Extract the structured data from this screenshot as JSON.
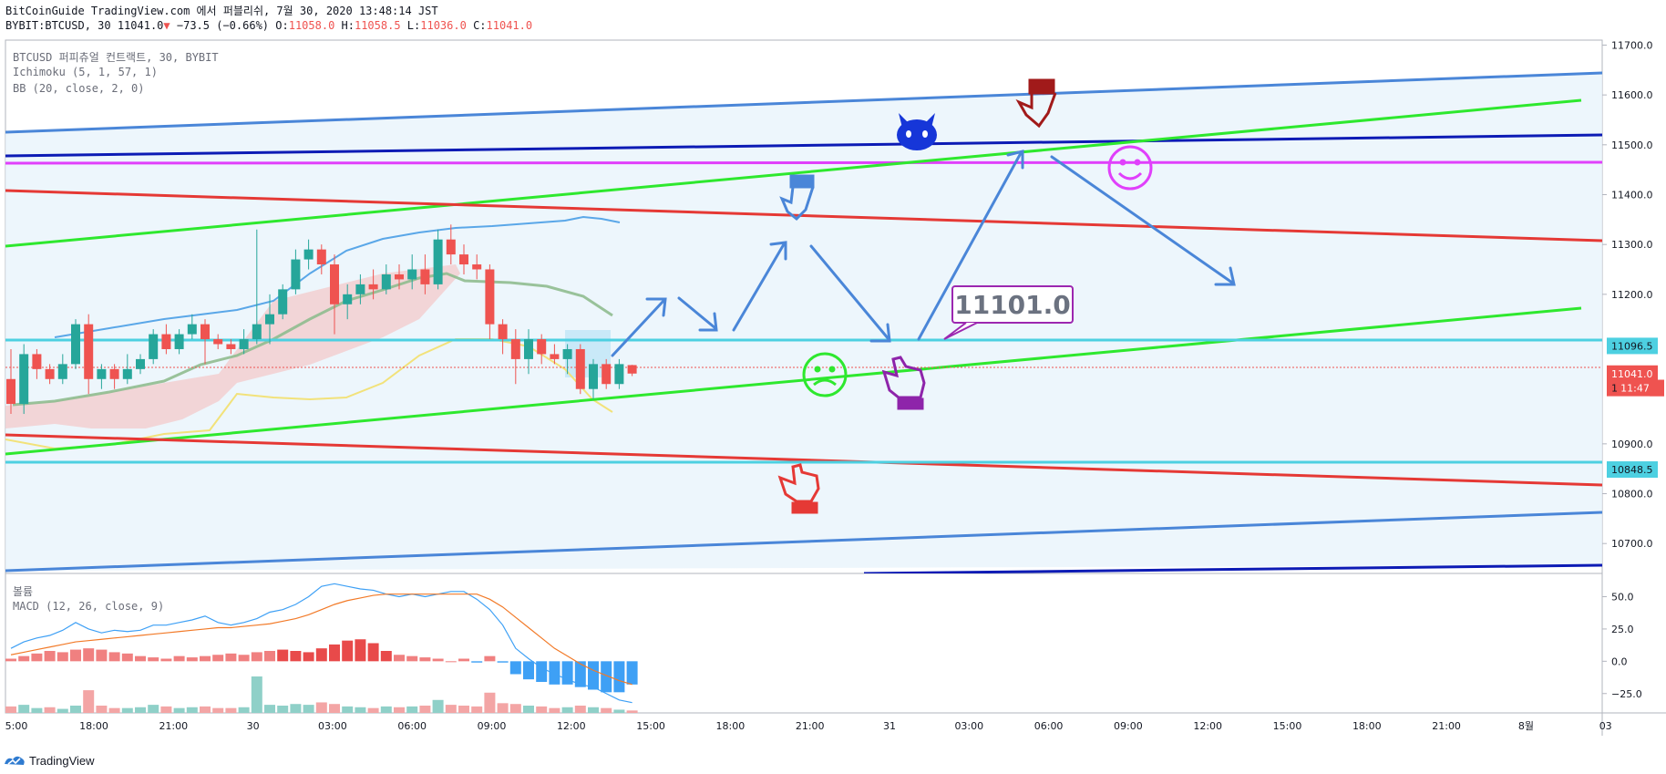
{
  "header": {
    "publisher": "BitCoinGuide TradingView.com 에서 퍼블리쉬, 7월 30, 2020 13:48:14 JST",
    "symbol": "BYBIT:BTCUSD, 30",
    "last": "11041.0",
    "change": "−73.5 (−0.66%)",
    "o_label": "O:",
    "o": "11058.0",
    "h_label": "H:",
    "h": "11058.5",
    "l_label": "L:",
    "l": "11036.0",
    "c_label": "C:",
    "c": "11041.0",
    "down_color": "#ef5350"
  },
  "legend": {
    "line1": "BTCUSD 퍼피츄얼 컨트랙트, 30, BYBIT",
    "line2": "Ichimoku (5, 1, 57, 1)",
    "line3": "BB (20, close, 2, 0)",
    "lower1": "볼륨",
    "lower2": "MACD (12, 26, close, 9)"
  },
  "annotation_price": "11101.0",
  "footer": {
    "brand": "TradingView"
  },
  "colors": {
    "up": "#26a69a",
    "down": "#ef5350",
    "cyan": "#4dd0e1",
    "green": "#2ee82e",
    "red": "#e53935",
    "blue": "#4a86d8",
    "navy": "#0d1bb5",
    "magenta": "#e040fb"
  },
  "chart_data": {
    "type": "candlestick",
    "price_axis": {
      "ylim": [
        10640,
        11710
      ],
      "ticks": [
        10700,
        10800,
        10900,
        11200,
        11300,
        11400,
        11500,
        11600,
        11700
      ],
      "tick_labels": [
        "10700.0",
        "10800.0",
        "10900.0",
        "11200.0",
        "11300.0",
        "11400.0",
        "11500.0",
        "11600.0",
        "11700.0"
      ]
    },
    "price_tags": [
      {
        "label": "11096.5",
        "value": 11096.5,
        "style": "cyan"
      },
      {
        "label": "11041.0",
        "value": 11041.0,
        "style": "red"
      },
      {
        "label": "11:47",
        "value": 11012,
        "style": "red"
      },
      {
        "label": "10848.5",
        "value": 10848.5,
        "style": "cyan"
      },
      {
        "label": "1",
        "value": 11012,
        "style": "plain"
      }
    ],
    "time_axis": {
      "labels": [
        "5:00",
        "18:00",
        "21:00",
        "30",
        "03:00",
        "06:00",
        "09:00",
        "12:00",
        "15:00",
        "18:00",
        "21:00",
        "31",
        "03:00",
        "06:00",
        "09:00",
        "12:00",
        "15:00",
        "18:00",
        "21:00",
        "8월",
        "03"
      ]
    },
    "candles": [
      [
        11030,
        11090,
        10960,
        10980
      ],
      [
        10980,
        11100,
        10960,
        11080
      ],
      [
        11080,
        11090,
        11030,
        11050
      ],
      [
        11050,
        11060,
        11020,
        11030
      ],
      [
        11030,
        11080,
        11020,
        11060
      ],
      [
        11060,
        11150,
        11050,
        11140
      ],
      [
        11140,
        11160,
        11000,
        11030
      ],
      [
        11030,
        11060,
        11010,
        11050
      ],
      [
        11050,
        11060,
        11010,
        11030
      ],
      [
        11030,
        11080,
        11020,
        11050
      ],
      [
        11050,
        11080,
        11040,
        11070
      ],
      [
        11070,
        11130,
        11060,
        11120
      ],
      [
        11120,
        11140,
        11080,
        11090
      ],
      [
        11090,
        11130,
        11080,
        11120
      ],
      [
        11120,
        11160,
        11110,
        11140
      ],
      [
        11140,
        11150,
        11060,
        11110
      ],
      [
        11110,
        11120,
        11090,
        11100
      ],
      [
        11100,
        11110,
        11080,
        11090
      ],
      [
        11090,
        11130,
        11080,
        11110
      ],
      [
        11110,
        11330,
        11100,
        11140
      ],
      [
        11140,
        11200,
        11100,
        11160
      ],
      [
        11160,
        11220,
        11150,
        11210
      ],
      [
        11210,
        11290,
        11200,
        11270
      ],
      [
        11270,
        11310,
        11250,
        11290
      ],
      [
        11290,
        11300,
        11240,
        11260
      ],
      [
        11260,
        11280,
        11120,
        11180
      ],
      [
        11180,
        11220,
        11150,
        11200
      ],
      [
        11200,
        11240,
        11180,
        11220
      ],
      [
        11220,
        11250,
        11190,
        11210
      ],
      [
        11210,
        11260,
        11200,
        11240
      ],
      [
        11240,
        11260,
        11210,
        11230
      ],
      [
        11230,
        11280,
        11210,
        11250
      ],
      [
        11250,
        11280,
        11200,
        11220
      ],
      [
        11220,
        11330,
        11210,
        11310
      ],
      [
        11310,
        11340,
        11260,
        11280
      ],
      [
        11280,
        11300,
        11240,
        11260
      ],
      [
        11260,
        11280,
        11230,
        11250
      ],
      [
        11250,
        11260,
        11110,
        11140
      ],
      [
        11140,
        11150,
        11080,
        11110
      ],
      [
        11110,
        11130,
        11020,
        11070
      ],
      [
        11070,
        11130,
        11040,
        11110
      ],
      [
        11110,
        11120,
        11060,
        11080
      ],
      [
        11080,
        11100,
        11060,
        11070
      ],
      [
        11070,
        11100,
        11040,
        11090
      ],
      [
        11090,
        11100,
        11000,
        11010
      ],
      [
        11010,
        11070,
        10990,
        11060
      ],
      [
        11060,
        11070,
        11010,
        11020
      ],
      [
        11020,
        11070,
        11010,
        11060
      ],
      [
        11058,
        11058.5,
        11036,
        11041
      ]
    ],
    "volume": [
      {
        "v": 8,
        "up": false
      },
      {
        "v": 10,
        "up": true
      },
      {
        "v": 6,
        "up": true
      },
      {
        "v": 7,
        "up": false
      },
      {
        "v": 5,
        "up": true
      },
      {
        "v": 9,
        "up": true
      },
      {
        "v": 28,
        "up": false
      },
      {
        "v": 9,
        "up": false
      },
      {
        "v": 6,
        "up": false
      },
      {
        "v": 6,
        "up": true
      },
      {
        "v": 7,
        "up": true
      },
      {
        "v": 10,
        "up": true
      },
      {
        "v": 8,
        "up": false
      },
      {
        "v": 6,
        "up": true
      },
      {
        "v": 7,
        "up": true
      },
      {
        "v": 8,
        "up": false
      },
      {
        "v": 6,
        "up": false
      },
      {
        "v": 6,
        "up": false
      },
      {
        "v": 7,
        "up": true
      },
      {
        "v": 45,
        "up": true
      },
      {
        "v": 10,
        "up": true
      },
      {
        "v": 9,
        "up": true
      },
      {
        "v": 11,
        "up": true
      },
      {
        "v": 10,
        "up": true
      },
      {
        "v": 13,
        "up": false
      },
      {
        "v": 11,
        "up": false
      },
      {
        "v": 8,
        "up": true
      },
      {
        "v": 7,
        "up": true
      },
      {
        "v": 6,
        "up": false
      },
      {
        "v": 8,
        "up": true
      },
      {
        "v": 7,
        "up": false
      },
      {
        "v": 8,
        "up": true
      },
      {
        "v": 9,
        "up": false
      },
      {
        "v": 16,
        "up": true
      },
      {
        "v": 10,
        "up": false
      },
      {
        "v": 9,
        "up": false
      },
      {
        "v": 8,
        "up": false
      },
      {
        "v": 25,
        "up": false
      },
      {
        "v": 12,
        "up": false
      },
      {
        "v": 11,
        "up": false
      },
      {
        "v": 9,
        "up": true
      },
      {
        "v": 8,
        "up": false
      },
      {
        "v": 6,
        "up": false
      },
      {
        "v": 7,
        "up": true
      },
      {
        "v": 9,
        "up": false
      },
      {
        "v": 7,
        "up": true
      },
      {
        "v": 6,
        "up": false
      },
      {
        "v": 4,
        "up": true
      },
      {
        "v": 3,
        "up": false
      }
    ],
    "macd_axis": {
      "ylim": [
        -40,
        68
      ],
      "ticks": [
        50,
        25,
        0,
        -25
      ],
      "tick_labels": [
        "50.0",
        "25.0",
        "0.0",
        "−25.0"
      ]
    },
    "macd_hist": [
      2,
      4,
      6,
      8,
      7,
      9,
      10,
      9,
      7,
      6,
      4,
      3,
      2,
      4,
      3,
      4,
      5,
      6,
      5,
      7,
      8,
      9,
      8,
      7,
      10,
      13,
      16,
      17,
      14,
      8,
      5,
      4,
      3,
      2,
      0,
      2,
      -1,
      4,
      -1,
      -10,
      -14,
      -16,
      -18,
      -18,
      -20,
      -22,
      -24,
      -24,
      -18
    ],
    "macd_line": [
      10,
      15,
      18,
      20,
      24,
      30,
      25,
      22,
      24,
      23,
      24,
      28,
      28,
      30,
      32,
      35,
      30,
      28,
      30,
      33,
      38,
      40,
      44,
      50,
      58,
      60,
      58,
      56,
      55,
      52,
      50,
      52,
      50,
      52,
      54,
      54,
      48,
      40,
      28,
      10,
      2,
      -5,
      -10,
      -14,
      -18,
      -20,
      -25,
      -30,
      -32
    ],
    "signal_line": [
      5,
      7,
      9,
      11,
      13,
      15,
      16,
      17,
      18,
      19,
      20,
      21,
      22,
      23,
      24,
      25,
      26,
      26,
      27,
      28,
      29,
      31,
      33,
      36,
      40,
      44,
      47,
      49,
      51,
      52,
      52,
      52,
      52,
      52,
      52,
      52,
      52,
      48,
      42,
      34,
      26,
      18,
      10,
      4,
      -2,
      -7,
      -11,
      -15,
      -18
    ]
  }
}
